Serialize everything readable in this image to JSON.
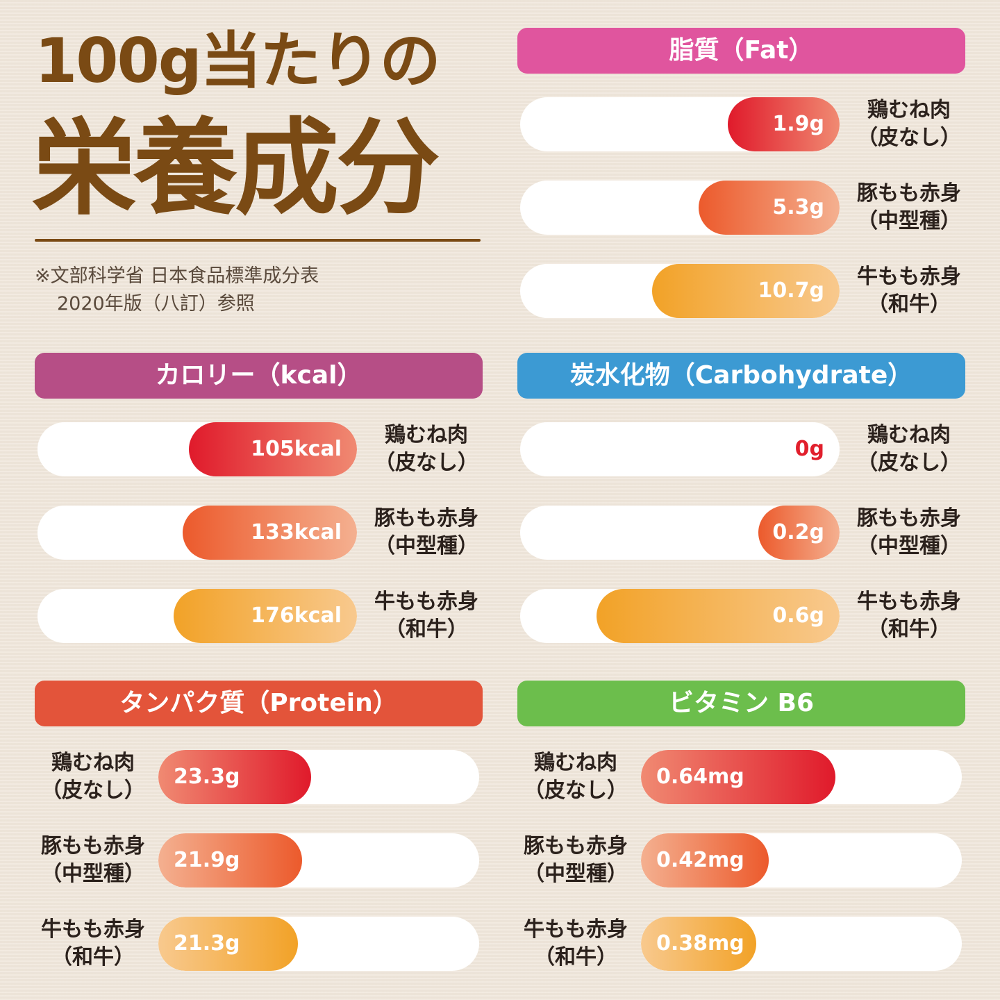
{
  "title_line1": "100g当たりの",
  "title_line2": "栄養成分",
  "source_line1": "※文部科学省 日本食品標準成分表",
  "source_line2": "2020年版（八訂）参照",
  "colors": {
    "title": "#7a4a14",
    "chicken": [
      "#e01a2b",
      "#f08a72"
    ],
    "pork": [
      "#ec5a2c",
      "#f4b090"
    ],
    "beef": [
      "#f2a227",
      "#f8c98e"
    ]
  },
  "chart_data": [
    {
      "type": "bar",
      "title": "脂質（Fat）",
      "header_color": "#e0559e",
      "categories": [
        [
          "鶏むね肉",
          "（皮なし）"
        ],
        [
          "豚もも赤身",
          "（中型種）"
        ],
        [
          "牛もも赤身",
          "（和牛）"
        ]
      ],
      "values": [
        1.9,
        5.3,
        10.7
      ],
      "labels": [
        "1.9g",
        "5.3g",
        "10.7g"
      ],
      "unit": "g"
    },
    {
      "type": "bar",
      "title": "カロリー（kcal）",
      "header_color": "#b64e86",
      "categories": [
        [
          "鶏むね肉",
          "（皮なし）"
        ],
        [
          "豚もも赤身",
          "（中型種）"
        ],
        [
          "牛もも赤身",
          "（和牛）"
        ]
      ],
      "values": [
        105,
        133,
        176
      ],
      "labels": [
        "105kcal",
        "133kcal",
        "176kcal"
      ],
      "unit": "kcal"
    },
    {
      "type": "bar",
      "title": "炭水化物（Carbohydrate）",
      "header_color": "#3c9ad3",
      "categories": [
        [
          "鶏むね肉",
          "（皮なし）"
        ],
        [
          "豚もも赤身",
          "（中型種）"
        ],
        [
          "牛もも赤身",
          "（和牛）"
        ]
      ],
      "values": [
        0,
        0.2,
        0.6
      ],
      "labels": [
        "0g",
        "0.2g",
        "0.6g"
      ],
      "unit": "g"
    },
    {
      "type": "bar",
      "title": "タンパク質（Protein）",
      "header_color": "#e3543a",
      "categories": [
        [
          "鶏むね肉",
          "（皮なし）"
        ],
        [
          "豚もも赤身",
          "（中型種）"
        ],
        [
          "牛もも赤身",
          "（和牛）"
        ]
      ],
      "values": [
        23.3,
        21.9,
        21.3
      ],
      "labels": [
        "23.3g",
        "21.9g",
        "21.3g"
      ],
      "unit": "g"
    },
    {
      "type": "bar",
      "title": "ビタミン B6",
      "header_color": "#6cbe4c",
      "categories": [
        [
          "鶏むね肉",
          "（皮なし）"
        ],
        [
          "豚もも赤身",
          "（中型種）"
        ],
        [
          "牛もも赤身",
          "（和牛）"
        ]
      ],
      "values": [
        0.64,
        0.42,
        0.38
      ],
      "labels": [
        "0.64mg",
        "0.42mg",
        "0.38mg"
      ],
      "unit": "mg"
    }
  ]
}
